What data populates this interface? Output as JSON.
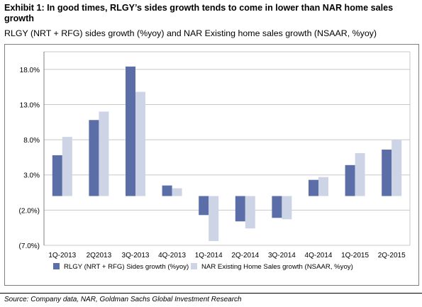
{
  "header": {
    "title": "Exhibit 1: In good times, RLGY’s sides growth tends to come in lower than NAR home sales growth",
    "subtitle": "RLGY (NRT + RFG) sides growth (%yoy) and NAR Existing home sales growth (NSAAR, %yoy)"
  },
  "footer": {
    "source": "Source: Company data, NAR, Goldman Sachs Global Investment Research"
  },
  "chart_data": {
    "type": "bar",
    "categories": [
      "1Q-2013",
      "2Q2013",
      "3Q-2013",
      "4Q-2013",
      "1Q-2014",
      "2Q-2014",
      "3Q-2014",
      "4Q-2014",
      "1Q-2015",
      "2Q-2015"
    ],
    "series": [
      {
        "name": "RLGY (NRT + RFG) Sides growth (%yoy)",
        "color": "#5b6ea8",
        "values": [
          5.8,
          10.8,
          18.4,
          1.5,
          -2.7,
          -3.6,
          -3.1,
          2.3,
          4.4,
          6.6
        ]
      },
      {
        "name": "NAR Existing Home Sales growth (NSAAR, %yoy)",
        "color": "#cdd4e6",
        "values": [
          8.4,
          12.0,
          14.8,
          1.1,
          -6.4,
          -4.6,
          -3.3,
          2.7,
          6.1,
          8.0
        ]
      }
    ],
    "yticks": [
      "18.0%",
      "13.0%",
      "8.0%",
      "3.0%",
      "(2.0%)",
      "(7.0%)"
    ],
    "ytick_values": [
      18,
      13,
      8,
      3,
      -2,
      -7
    ],
    "ylim": [
      -7,
      20.5
    ],
    "grid": true,
    "legend": "bottom"
  }
}
